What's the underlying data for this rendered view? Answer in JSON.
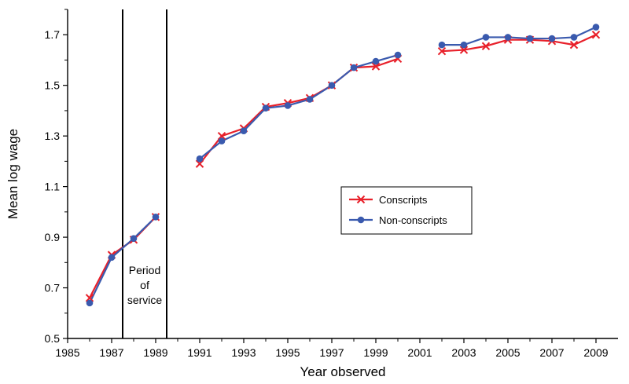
{
  "chart_data": {
    "type": "line",
    "xlabel": "Year observed",
    "ylabel": "Mean log wage",
    "xlim": [
      1985,
      2010
    ],
    "ylim": [
      0.5,
      1.8
    ],
    "x_ticks": [
      1985,
      1987,
      1989,
      1991,
      1993,
      1995,
      1997,
      1999,
      2001,
      2003,
      2005,
      2007,
      2009
    ],
    "y_ticks": [
      0.5,
      0.7,
      0.9,
      1.1,
      1.3,
      1.5,
      1.7
    ],
    "x_tick_labels": [
      "1985",
      "1987",
      "1989",
      "1991",
      "1993",
      "1995",
      "1997",
      "1999",
      "2001",
      "2003",
      "2005",
      "2007",
      "2009"
    ],
    "y_tick_labels": [
      "0.5",
      "0.7",
      "0.9",
      "1.1",
      "1.3",
      "1.5",
      "1.7"
    ],
    "grid": false,
    "legend_position": "center-right",
    "annotation": {
      "lines": [
        "Period",
        "of",
        "service"
      ],
      "x_start": 1987.5,
      "x_end": 1989.5
    },
    "series": [
      {
        "name": "Conscripts",
        "color": "#e8202a",
        "marker": "x",
        "segments": [
          {
            "x": [
              1986,
              1987,
              1988,
              1989
            ],
            "y": [
              0.66,
              0.83,
              0.89,
              0.98
            ]
          },
          {
            "x": [
              1991,
              1992,
              1993,
              1994,
              1995,
              1996,
              1997,
              1998,
              1999,
              2000
            ],
            "y": [
              1.19,
              1.3,
              1.33,
              1.415,
              1.43,
              1.45,
              1.5,
              1.57,
              1.575,
              1.605
            ]
          },
          {
            "x": [
              2002,
              2003,
              2004,
              2005,
              2006,
              2007,
              2008,
              2009
            ],
            "y": [
              1.635,
              1.64,
              1.655,
              1.68,
              1.68,
              1.675,
              1.66,
              1.7
            ]
          }
        ]
      },
      {
        "name": "Non-conscripts",
        "color": "#3a5aae",
        "marker": "circle",
        "segments": [
          {
            "x": [
              1986,
              1987,
              1988,
              1989
            ],
            "y": [
              0.64,
              0.82,
              0.895,
              0.98
            ]
          },
          {
            "x": [
              1991,
              1992,
              1993,
              1994,
              1995,
              1996,
              1997,
              1998,
              1999,
              2000
            ],
            "y": [
              1.21,
              1.28,
              1.32,
              1.41,
              1.42,
              1.445,
              1.5,
              1.57,
              1.595,
              1.62
            ]
          },
          {
            "x": [
              2002,
              2003,
              2004,
              2005,
              2006,
              2007,
              2008,
              2009
            ],
            "y": [
              1.66,
              1.66,
              1.69,
              1.69,
              1.685,
              1.685,
              1.69,
              1.73
            ]
          }
        ]
      }
    ]
  }
}
